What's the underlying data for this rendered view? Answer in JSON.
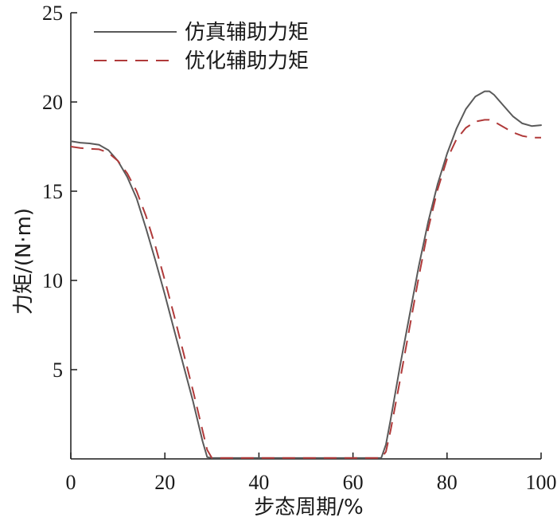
{
  "chart_data": {
    "type": "line",
    "title": "",
    "xlabel": "步态周期/%",
    "ylabel": "力矩/(N·m)",
    "xlim": [
      0,
      100
    ],
    "ylim": [
      0,
      25
    ],
    "xticks": [
      0,
      20,
      40,
      60,
      80,
      100
    ],
    "yticks": [
      5,
      10,
      15,
      20,
      25
    ],
    "grid": false,
    "legend_position": "top-left",
    "series": [
      {
        "name": "仿真辅助力矩",
        "color": "#5a5a5a",
        "style": "solid",
        "points": [
          [
            0,
            17.8
          ],
          [
            2,
            17.72
          ],
          [
            4,
            17.68
          ],
          [
            6,
            17.6
          ],
          [
            8,
            17.3
          ],
          [
            10,
            16.7
          ],
          [
            12,
            15.8
          ],
          [
            14,
            14.6
          ],
          [
            16,
            12.9
          ],
          [
            18,
            11.1
          ],
          [
            20,
            9.2
          ],
          [
            22,
            7.2
          ],
          [
            24,
            5.2
          ],
          [
            26,
            3.2
          ],
          [
            28,
            1.0
          ],
          [
            29,
            0.1
          ],
          [
            30,
            0.05
          ],
          [
            35,
            0.05
          ],
          [
            40,
            0.05
          ],
          [
            50,
            0.05
          ],
          [
            60,
            0.05
          ],
          [
            66,
            0.05
          ],
          [
            67,
            0.8
          ],
          [
            68,
            2.2
          ],
          [
            70,
            5.2
          ],
          [
            72,
            8.0
          ],
          [
            74,
            10.8
          ],
          [
            76,
            13.3
          ],
          [
            78,
            15.4
          ],
          [
            80,
            17.1
          ],
          [
            82,
            18.5
          ],
          [
            84,
            19.6
          ],
          [
            86,
            20.3
          ],
          [
            88,
            20.6
          ],
          [
            89,
            20.6
          ],
          [
            90,
            20.4
          ],
          [
            92,
            19.8
          ],
          [
            94,
            19.2
          ],
          [
            96,
            18.8
          ],
          [
            98,
            18.65
          ],
          [
            100,
            18.7
          ]
        ]
      },
      {
        "name": "优化辅助力矩",
        "color": "#b03a3a",
        "style": "dashed",
        "points": [
          [
            0,
            17.5
          ],
          [
            2,
            17.42
          ],
          [
            4,
            17.38
          ],
          [
            6,
            17.35
          ],
          [
            8,
            17.15
          ],
          [
            10,
            16.7
          ],
          [
            12,
            16.0
          ],
          [
            14,
            15.0
          ],
          [
            16,
            13.6
          ],
          [
            18,
            11.9
          ],
          [
            20,
            10.0
          ],
          [
            22,
            8.0
          ],
          [
            24,
            5.9
          ],
          [
            26,
            3.8
          ],
          [
            28,
            1.6
          ],
          [
            29,
            0.5
          ],
          [
            30,
            0.05
          ],
          [
            35,
            0.05
          ],
          [
            40,
            0.05
          ],
          [
            50,
            0.05
          ],
          [
            60,
            0.05
          ],
          [
            66,
            0.05
          ],
          [
            67,
            0.4
          ],
          [
            68,
            1.6
          ],
          [
            70,
            4.4
          ],
          [
            72,
            7.3
          ],
          [
            74,
            10.2
          ],
          [
            76,
            12.9
          ],
          [
            78,
            15.1
          ],
          [
            80,
            16.8
          ],
          [
            82,
            17.9
          ],
          [
            84,
            18.55
          ],
          [
            86,
            18.9
          ],
          [
            88,
            19.0
          ],
          [
            89,
            19.0
          ],
          [
            90,
            18.9
          ],
          [
            92,
            18.6
          ],
          [
            94,
            18.3
          ],
          [
            96,
            18.1
          ],
          [
            98,
            18.0
          ],
          [
            100,
            18.0
          ]
        ]
      }
    ]
  }
}
